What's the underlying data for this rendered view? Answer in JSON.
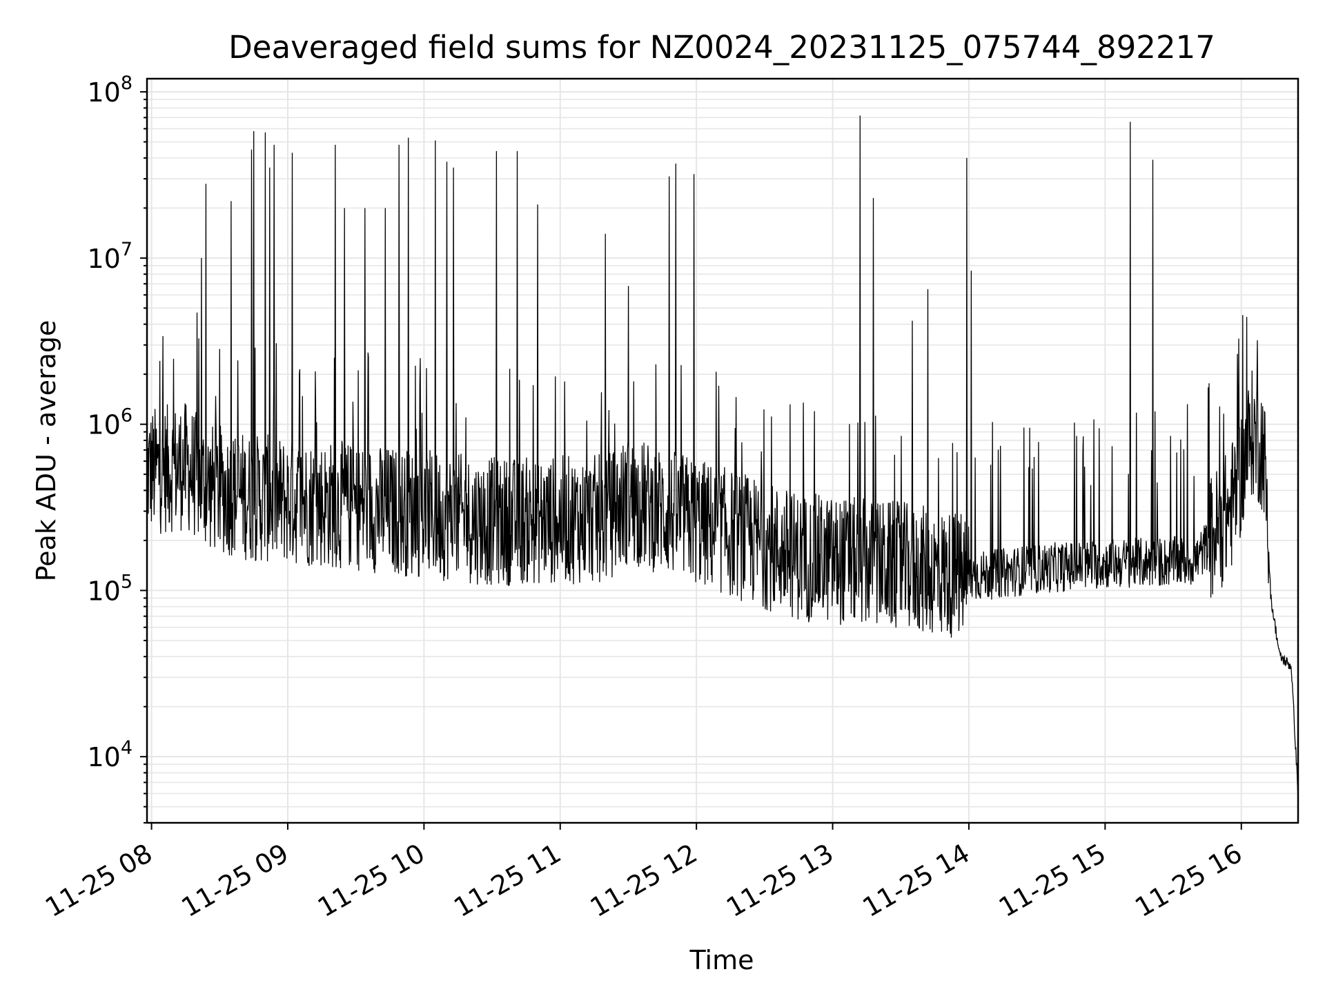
{
  "chart_data": {
    "type": "line",
    "title": "Deaveraged field sums for NZ0024_20231125_075744_892217",
    "xlabel": "Time",
    "ylabel": "Peak ADU - average",
    "yscale": "log",
    "ylim": [
      4000,
      120000000
    ],
    "xlim": [
      "2023-11-25 07:58",
      "2023-11-25 16:25"
    ],
    "grid": true,
    "line_color": "#000000",
    "grid_color": "#e6e6e6",
    "x_ticks": [
      {
        "t": "2023-11-25 08:00",
        "label": "11-25 08"
      },
      {
        "t": "2023-11-25 09:00",
        "label": "11-25 09"
      },
      {
        "t": "2023-11-25 10:00",
        "label": "11-25 10"
      },
      {
        "t": "2023-11-25 11:00",
        "label": "11-25 11"
      },
      {
        "t": "2023-11-25 12:00",
        "label": "11-25 12"
      },
      {
        "t": "2023-11-25 13:00",
        "label": "11-25 13"
      },
      {
        "t": "2023-11-25 14:00",
        "label": "11-25 14"
      },
      {
        "t": "2023-11-25 15:00",
        "label": "11-25 15"
      },
      {
        "t": "2023-11-25 16:00",
        "label": "11-25 16"
      }
    ],
    "y_ticks": [
      {
        "value": 10000,
        "base": "10",
        "exp": "4"
      },
      {
        "value": 100000,
        "base": "10",
        "exp": "5"
      },
      {
        "value": 1000000,
        "base": "10",
        "exp": "6"
      },
      {
        "value": 10000000,
        "base": "10",
        "exp": "7"
      },
      {
        "value": 100000000,
        "base": "10",
        "exp": "8"
      }
    ],
    "series": [
      {
        "baseline_profile": [
          {
            "t": "2023-11-25 07:58",
            "value": 520000
          },
          {
            "t": "2023-11-25 08:15",
            "value": 560000
          },
          {
            "t": "2023-11-25 08:25",
            "value": 420000
          },
          {
            "t": "2023-11-25 08:45",
            "value": 360000
          },
          {
            "t": "2023-11-25 09:30",
            "value": 320000
          },
          {
            "t": "2023-11-25 10:30",
            "value": 260000
          },
          {
            "t": "2023-11-25 11:20",
            "value": 270000
          },
          {
            "t": "2023-11-25 11:30",
            "value": 350000
          },
          {
            "t": "2023-11-25 12:00",
            "value": 260000
          },
          {
            "t": "2023-11-25 12:45",
            "value": 160000
          },
          {
            "t": "2023-11-25 13:30",
            "value": 140000
          },
          {
            "t": "2023-11-25 14:00",
            "value": 120000
          },
          {
            "t": "2023-11-25 14:30",
            "value": 135000
          },
          {
            "t": "2023-11-25 15:00",
            "value": 145000
          },
          {
            "t": "2023-11-25 15:40",
            "value": 150000
          },
          {
            "t": "2023-11-25 15:55",
            "value": 300000
          },
          {
            "t": "2023-11-25 16:05",
            "value": 900000
          },
          {
            "t": "2023-11-25 16:10",
            "value": 700000
          },
          {
            "t": "2023-11-25 16:13",
            "value": 90000
          },
          {
            "t": "2023-11-25 16:17",
            "value": 40000
          },
          {
            "t": "2023-11-25 16:22",
            "value": 35000
          },
          {
            "t": "2023-11-25 16:25",
            "value": 6000
          }
        ],
        "peaks": [
          {
            "t": "2023-11-25 08:24",
            "value": 28000000
          },
          {
            "t": "2023-11-25 08:22",
            "value": 10000000
          },
          {
            "t": "2023-11-25 08:20",
            "value": 4700000
          },
          {
            "t": "2023-11-25 08:35",
            "value": 22000000
          },
          {
            "t": "2023-11-25 08:44",
            "value": 45000000
          },
          {
            "t": "2023-11-25 08:45",
            "value": 58000000
          },
          {
            "t": "2023-11-25 08:50",
            "value": 57000000
          },
          {
            "t": "2023-11-25 08:52",
            "value": 35000000
          },
          {
            "t": "2023-11-25 08:54",
            "value": 48000000
          },
          {
            "t": "2023-11-25 09:02",
            "value": 43000000
          },
          {
            "t": "2023-11-25 09:21",
            "value": 48000000
          },
          {
            "t": "2023-11-25 09:25",
            "value": 20000000
          },
          {
            "t": "2023-11-25 09:34",
            "value": 20000000
          },
          {
            "t": "2023-11-25 09:43",
            "value": 20000000
          },
          {
            "t": "2023-11-25 09:49",
            "value": 48000000
          },
          {
            "t": "2023-11-25 09:53",
            "value": 53000000
          },
          {
            "t": "2023-11-25 10:05",
            "value": 51000000
          },
          {
            "t": "2023-11-25 10:10",
            "value": 38000000
          },
          {
            "t": "2023-11-25 10:13",
            "value": 35000000
          },
          {
            "t": "2023-11-25 10:32",
            "value": 44000000
          },
          {
            "t": "2023-11-25 10:41",
            "value": 44000000
          },
          {
            "t": "2023-11-25 10:50",
            "value": 21000000
          },
          {
            "t": "2023-11-25 11:20",
            "value": 14000000
          },
          {
            "t": "2023-11-25 11:30",
            "value": 6800000
          },
          {
            "t": "2023-11-25 11:48",
            "value": 31000000
          },
          {
            "t": "2023-11-25 11:51",
            "value": 37000000
          },
          {
            "t": "2023-11-25 11:59",
            "value": 32000000
          },
          {
            "t": "2023-11-25 13:12",
            "value": 72000000
          },
          {
            "t": "2023-11-25 13:18",
            "value": 23000000
          },
          {
            "t": "2023-11-25 13:35",
            "value": 4200000
          },
          {
            "t": "2023-11-25 13:42",
            "value": 6500000
          },
          {
            "t": "2023-11-25 13:59",
            "value": 40000000
          },
          {
            "t": "2023-11-25 14:01",
            "value": 8400000
          },
          {
            "t": "2023-11-25 15:11",
            "value": 66000000
          },
          {
            "t": "2023-11-25 15:21",
            "value": 39000000
          },
          {
            "t": "2023-11-25 16:07",
            "value": 3200000
          }
        ]
      }
    ]
  }
}
